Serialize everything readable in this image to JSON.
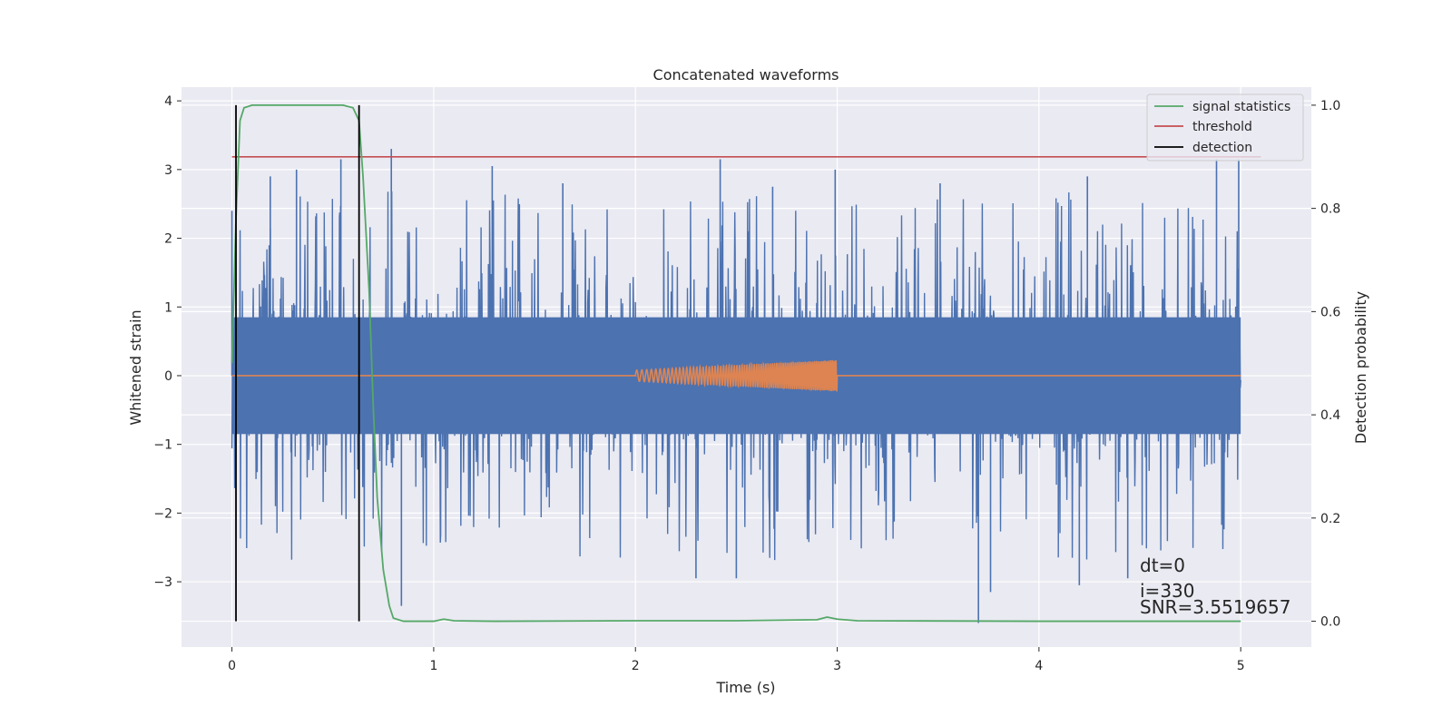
{
  "chart_data": {
    "type": "line",
    "title": "Concatenated waveforms",
    "xlabel": "Time (s)",
    "ylabel": "Whitened strain",
    "ylabel_right": "Detection probability",
    "xlim": [
      -0.25,
      5.35
    ],
    "ylim": [
      -3.95,
      4.2
    ],
    "ylim_right": [
      -0.05,
      1.035
    ],
    "x_ticks": [
      0,
      1,
      2,
      3,
      4,
      5
    ],
    "y_ticks": [
      -3,
      -2,
      -1,
      0,
      1,
      2,
      3,
      4
    ],
    "y_ticks_right": [
      0.0,
      0.2,
      0.4,
      0.6,
      0.8,
      1.0
    ],
    "grid": true,
    "legend_position": "top-right",
    "colors": {
      "background": "#eaeaf2",
      "grid": "#ffffff",
      "strain": "#4c72b0",
      "injected": "#dd8452",
      "signal_statistics": "#55a868",
      "threshold": "#c44e52",
      "detection": "#000000"
    },
    "series": [
      {
        "name": "",
        "axis": "left",
        "description_type": "noise",
        "x_range": [
          0,
          5
        ],
        "band_abs": 0.85,
        "peaks": [
          {
            "x": 0.0,
            "y": 2.4
          },
          {
            "x": 0.19,
            "y": 2.9
          },
          {
            "x": 0.32,
            "y": 3.0
          },
          {
            "x": 0.54,
            "y": 3.15
          },
          {
            "x": 0.79,
            "y": 3.3
          },
          {
            "x": 1.29,
            "y": 3.05
          },
          {
            "x": 1.64,
            "y": 2.8
          },
          {
            "x": 2.42,
            "y": 3.15
          },
          {
            "x": 2.68,
            "y": 2.75
          },
          {
            "x": 2.99,
            "y": 3.0
          },
          {
            "x": 3.51,
            "y": 2.8
          },
          {
            "x": 4.24,
            "y": 2.9
          },
          {
            "x": 4.88,
            "y": 3.15
          },
          {
            "x": 4.99,
            "y": 3.15
          }
        ],
        "troughs": [
          {
            "x": 0.84,
            "y": -3.35
          },
          {
            "x": 2.3,
            "y": -2.95
          },
          {
            "x": 2.5,
            "y": -2.95
          },
          {
            "x": 3.7,
            "y": -3.6
          },
          {
            "x": 3.76,
            "y": -3.15
          },
          {
            "x": 4.2,
            "y": -3.05
          },
          {
            "x": 4.44,
            "y": -2.95
          }
        ]
      },
      {
        "name": "",
        "axis": "left",
        "description_type": "chirp",
        "x": [
          0,
          2,
          2,
          3,
          3,
          5
        ],
        "amplitude": [
          0,
          0,
          0.08,
          0.23,
          0,
          0
        ]
      },
      {
        "name": "signal statistics",
        "axis": "right",
        "x": [
          0.0,
          0.02,
          0.04,
          0.06,
          0.1,
          0.2,
          0.55,
          0.6,
          0.63,
          0.65,
          0.68,
          0.7,
          0.72,
          0.75,
          0.78,
          0.8,
          0.85,
          1.0,
          1.05,
          1.1,
          1.3,
          2.0,
          2.5,
          2.9,
          2.95,
          3.0,
          3.1,
          4.0,
          5.0
        ],
        "y": [
          0.5,
          0.78,
          0.97,
          0.995,
          1.0,
          1.0,
          1.0,
          0.995,
          0.97,
          0.86,
          0.64,
          0.42,
          0.24,
          0.1,
          0.03,
          0.006,
          0.0,
          0.0,
          0.004,
          0.001,
          0.0,
          0.001,
          0.001,
          0.003,
          0.008,
          0.004,
          0.001,
          0.0,
          0.0
        ]
      },
      {
        "name": "threshold",
        "axis": "right",
        "x": [
          0,
          5.1
        ],
        "y": [
          0.9,
          0.9
        ]
      },
      {
        "name": "detection",
        "axis": "right",
        "vlines_x": [
          0.02,
          0.63
        ],
        "ymin": 0.0,
        "ymax": 1.0
      }
    ],
    "legend": [
      "signal statistics",
      "threshold",
      "detection"
    ],
    "annotations": [
      "dt=0",
      "i=330",
      "SNR=3.5519657"
    ]
  }
}
